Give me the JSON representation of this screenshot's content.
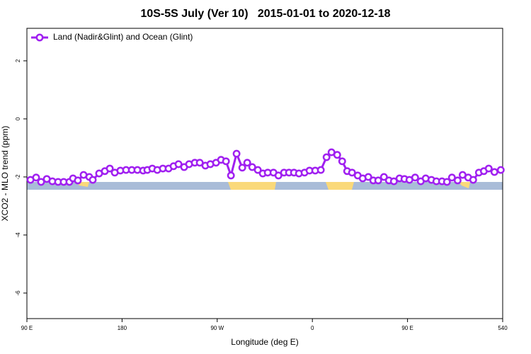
{
  "chart_data": {
    "type": "line",
    "title": "10S-5S July (Ver 10)   2015-01-01 to 2020-12-18",
    "x_label": "Longitude (deg E)",
    "y_label": "XCO2 - MLO trend (ppm)",
    "xlim": [
      90,
      540
    ],
    "ylim": [
      -6.88,
      3.12
    ],
    "xticks": [
      {
        "value": 90,
        "label": "90 E"
      },
      180,
      {
        "value": 270,
        "label": "90 W"
      },
      {
        "value": 360,
        "label": "0"
      },
      {
        "value": 450,
        "label": "90 E"
      },
      540
    ],
    "yticks": [
      -6,
      -4,
      -2,
      0,
      2
    ],
    "legend_position": "top-left",
    "x": [
      93.4,
      98.7,
      103.4,
      108.8,
      114.1,
      119.5,
      124.8,
      130.2,
      133.6,
      138.2,
      143.6,
      149,
      152.3,
      158.3,
      163.7,
      168.4,
      173.1,
      178.4,
      183.8,
      189.2,
      194.5,
      199.9,
      203.9,
      208.6,
      213.3,
      218.6,
      224,
      228.7,
      233.4,
      238.7,
      243.4,
      248.8,
      253.5,
      258.8,
      263.5,
      268.9,
      273.6,
      278.3,
      283,
      288.3,
      293.7,
      298.4,
      303.1,
      308.4,
      313.1,
      317.8,
      323.2,
      327.9,
      333.2,
      337.9,
      342.6,
      347.3,
      352.6,
      357.3,
      362.7,
      368,
      373.4,
      378.1,
      383.5,
      388.2,
      392.9,
      397.5,
      402.9,
      407.6,
      412.9,
      417.6,
      422.3,
      427.7,
      432.4,
      437.1,
      442.4,
      447.1,
      451.8,
      457.2,
      462.5,
      467.2,
      472.6,
      477.3,
      482.6,
      487.3,
      492,
      497.4,
      502.1,
      507.4,
      512.1,
      517.5,
      522.2,
      526.8,
      532.2,
      538.2
    ],
    "series": [
      {
        "name": "Land (Nadir&Glint) and Ocean (Glint)",
        "color": "#a020f0",
        "values": [
          -2.1,
          -2.02,
          -2.17,
          -2.07,
          -2.15,
          -2.17,
          -2.17,
          -2.17,
          -2.05,
          -2.12,
          -1.93,
          -2.0,
          -2.1,
          -1.88,
          -1.8,
          -1.71,
          -1.85,
          -1.78,
          -1.76,
          -1.76,
          -1.76,
          -1.78,
          -1.76,
          -1.71,
          -1.76,
          -1.71,
          -1.71,
          -1.63,
          -1.56,
          -1.66,
          -1.56,
          -1.51,
          -1.51,
          -1.61,
          -1.56,
          -1.51,
          -1.41,
          -1.46,
          -1.95,
          -1.2,
          -1.68,
          -1.51,
          -1.66,
          -1.76,
          -1.88,
          -1.85,
          -1.85,
          -1.95,
          -1.85,
          -1.85,
          -1.85,
          -1.88,
          -1.85,
          -1.78,
          -1.78,
          -1.76,
          -1.32,
          -1.15,
          -1.24,
          -1.46,
          -1.8,
          -1.85,
          -1.95,
          -2.05,
          -2.0,
          -2.12,
          -2.12,
          -2.0,
          -2.12,
          -2.15,
          -2.05,
          -2.07,
          -2.1,
          -2.02,
          -2.15,
          -2.05,
          -2.1,
          -2.15,
          -2.15,
          -2.17,
          -2.02,
          -2.12,
          -1.93,
          -2.02,
          -2.1,
          -1.85,
          -1.8,
          -1.71,
          -1.83,
          -1.76
        ]
      }
    ]
  }
}
